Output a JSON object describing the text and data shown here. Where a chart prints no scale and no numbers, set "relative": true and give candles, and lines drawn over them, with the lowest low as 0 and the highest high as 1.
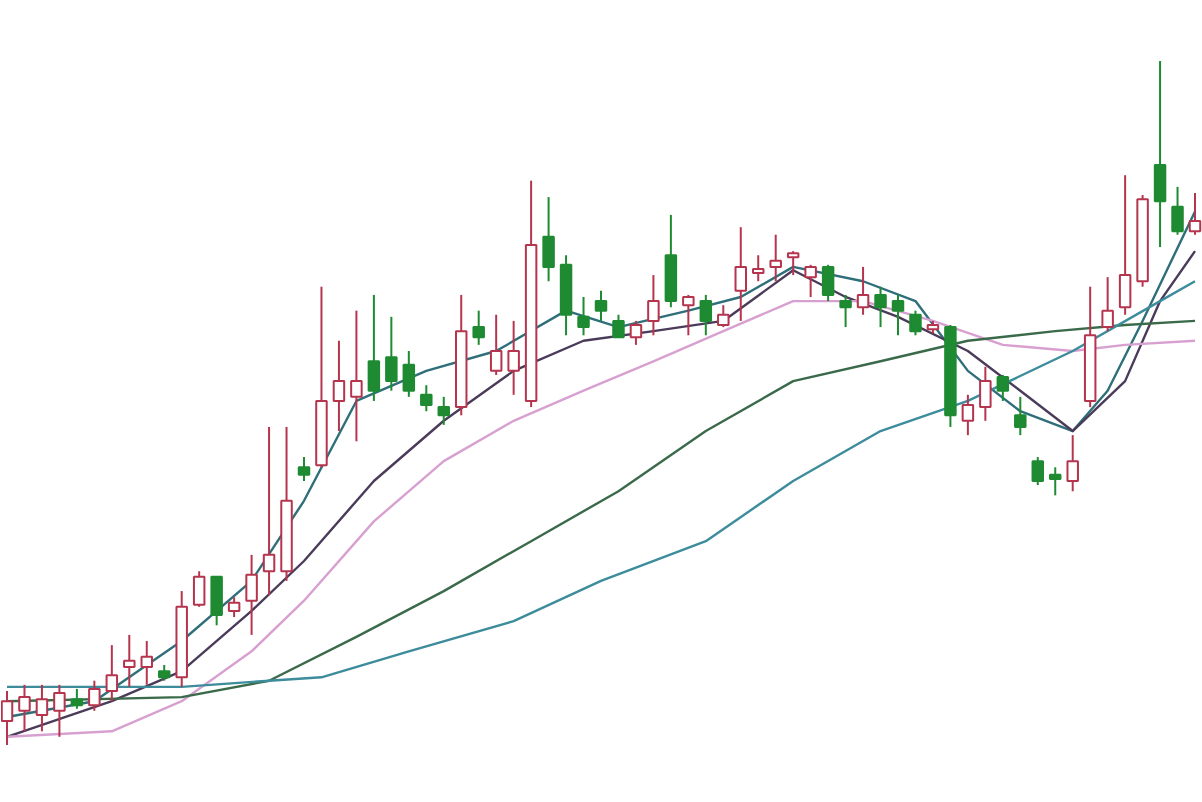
{
  "chart_data": {
    "type": "candlestick",
    "relative": true,
    "categories": [
      null,
      null,
      null,
      null,
      null,
      null,
      null,
      null,
      null,
      null,
      null,
      null,
      null,
      null,
      null,
      null,
      null,
      null,
      null,
      null,
      null,
      null,
      null,
      null,
      null,
      null,
      null,
      null,
      null,
      null,
      null,
      null,
      null,
      null,
      null,
      null,
      null,
      null,
      null,
      null,
      null,
      null,
      null,
      null,
      null,
      null,
      null,
      null,
      null,
      null,
      null,
      null,
      null,
      null,
      null,
      null,
      null,
      null,
      null,
      null,
      null,
      null,
      null,
      null,
      null,
      null,
      null,
      null,
      null
    ],
    "ohlc": [
      [
        0.035,
        0.079,
        0,
        0.064
      ],
      [
        0.05,
        0.088,
        0.02,
        0.07
      ],
      [
        0.044,
        0.088,
        0.02,
        0.067
      ],
      [
        0.05,
        0.088,
        0.012,
        0.076
      ],
      [
        0.067,
        0.082,
        0.053,
        0.058
      ],
      [
        0.058,
        0.094,
        0.05,
        0.082
      ],
      [
        0.079,
        0.146,
        0.064,
        0.102
      ],
      [
        0.114,
        0.161,
        0.085,
        0.123
      ],
      [
        0.114,
        0.152,
        0.088,
        0.129
      ],
      [
        0.108,
        0.117,
        0.094,
        0.099
      ],
      [
        0.099,
        0.225,
        0.085,
        0.202
      ],
      [
        0.205,
        0.254,
        0.202,
        0.246
      ],
      [
        0.246,
        0.246,
        0.175,
        0.19
      ],
      [
        0.196,
        0.216,
        0.187,
        0.208
      ],
      [
        0.211,
        0.278,
        0.161,
        0.249
      ],
      [
        0.254,
        0.465,
        0.219,
        0.278
      ],
      [
        0.254,
        0.465,
        0.24,
        0.357
      ],
      [
        0.406,
        0.421,
        0.386,
        0.395
      ],
      [
        0.409,
        0.67,
        0.406,
        0.503
      ],
      [
        0.503,
        0.591,
        0.459,
        0.532
      ],
      [
        0.509,
        0.635,
        0.444,
        0.532
      ],
      [
        0.561,
        0.658,
        0.503,
        0.518
      ],
      [
        0.567,
        0.626,
        0.518,
        0.532
      ],
      [
        0.556,
        0.576,
        0.509,
        0.518
      ],
      [
        0.512,
        0.526,
        0.488,
        0.497
      ],
      [
        0.494,
        0.509,
        0.468,
        0.482
      ],
      [
        0.494,
        0.658,
        0.482,
        0.605
      ],
      [
        0.611,
        0.635,
        0.585,
        0.596
      ],
      [
        0.547,
        0.629,
        0.541,
        0.576
      ],
      [
        0.547,
        0.62,
        0.512,
        0.576
      ],
      [
        0.503,
        0.825,
        0.494,
        0.731
      ],
      [
        0.743,
        0.801,
        0.678,
        0.699
      ],
      [
        0.702,
        0.716,
        0.599,
        0.629
      ],
      [
        0.626,
        0.655,
        0.599,
        0.611
      ],
      [
        0.649,
        0.664,
        0.62,
        0.635
      ],
      [
        0.62,
        0.629,
        0.596,
        0.596
      ],
      [
        0.596,
        0.62,
        0.585,
        0.614
      ],
      [
        0.62,
        0.687,
        0.599,
        0.649
      ],
      [
        0.716,
        0.775,
        0.64,
        0.649
      ],
      [
        0.643,
        0.658,
        0.599,
        0.655
      ],
      [
        0.649,
        0.658,
        0.599,
        0.62
      ],
      [
        0.614,
        0.643,
        0.611,
        0.629
      ],
      [
        0.664,
        0.757,
        0.62,
        0.699
      ],
      [
        0.69,
        0.716,
        0.678,
        0.696
      ],
      [
        0.699,
        0.746,
        0.678,
        0.708
      ],
      [
        0.713,
        0.722,
        0.687,
        0.719
      ],
      [
        0.684,
        0.702,
        0.655,
        0.699
      ],
      [
        0.699,
        0.702,
        0.649,
        0.658
      ],
      [
        0.649,
        0.658,
        0.611,
        0.64
      ],
      [
        0.64,
        0.699,
        0.629,
        0.658
      ],
      [
        0.658,
        0.67,
        0.611,
        0.64
      ],
      [
        0.649,
        0.658,
        0.599,
        0.635
      ],
      [
        0.629,
        0.635,
        0.599,
        0.605
      ],
      [
        0.608,
        0.62,
        0.602,
        0.614
      ],
      [
        0.611,
        0.614,
        0.465,
        0.482
      ],
      [
        0.474,
        0.512,
        0.453,
        0.497
      ],
      [
        0.494,
        0.553,
        0.474,
        0.532
      ],
      [
        0.538,
        0.541,
        0.503,
        0.518
      ],
      [
        0.482,
        0.509,
        0.453,
        0.465
      ],
      [
        0.415,
        0.421,
        0.38,
        0.386
      ],
      [
        0.395,
        0.406,
        0.365,
        0.389
      ],
      [
        0.386,
        0.453,
        0.371,
        0.415
      ],
      [
        0.503,
        0.67,
        0.494,
        0.599
      ],
      [
        0.611,
        0.684,
        0.605,
        0.635
      ],
      [
        0.64,
        0.833,
        0.629,
        0.687
      ],
      [
        0.678,
        0.804,
        0.67,
        0.798
      ],
      [
        0.848,
        1,
        0.728,
        0.795
      ],
      [
        0.787,
        0.816,
        0.746,
        0.751
      ],
      [
        0.751,
        0.807,
        0.746,
        0.766
      ]
    ],
    "series": [
      {
        "type": "line",
        "color": "#2f6f7a",
        "values": [
          0.041,
          null,
          null,
          null,
          null,
          0.064,
          null,
          null,
          null,
          null,
          0.152,
          null,
          null,
          null,
          0.24,
          null,
          null,
          0.357,
          null,
          null,
          0.503,
          null,
          null,
          null,
          0.547,
          null,
          null,
          null,
          0.576,
          null,
          null,
          null,
          0.635,
          null,
          null,
          0.611,
          null,
          null,
          null,
          0.635,
          null,
          null,
          0.655,
          null,
          null,
          0.699,
          null,
          null,
          null,
          0.678,
          null,
          null,
          0.649,
          null,
          null,
          0.547,
          null,
          null,
          0.488,
          null,
          null,
          0.459,
          null,
          0.518,
          null,
          0.62,
          null,
          null,
          0.78
        ]
      },
      {
        "type": "line",
        "color": "#4b3b5a",
        "values": [
          0.012,
          null,
          null,
          null,
          null,
          null,
          0.064,
          null,
          null,
          null,
          0.108,
          null,
          null,
          null,
          0.196,
          null,
          null,
          0.269,
          null,
          null,
          null,
          0.386,
          null,
          null,
          null,
          0.474,
          null,
          null,
          null,
          0.547,
          null,
          null,
          null,
          0.591,
          null,
          null,
          null,
          0.605,
          null,
          null,
          null,
          0.62,
          null,
          null,
          null,
          0.694,
          null,
          null,
          0.655,
          null,
          null,
          0.626,
          null,
          null,
          null,
          0.576,
          null,
          null,
          0.518,
          null,
          null,
          0.459,
          null,
          null,
          0.532,
          null,
          0.649,
          null,
          0.722
        ]
      },
      {
        "type": "line",
        "color": "#d8a0d0",
        "values": [
          0.012,
          null,
          null,
          null,
          null,
          null,
          0.02,
          null,
          null,
          null,
          0.064,
          null,
          null,
          null,
          0.137,
          null,
          null,
          0.211,
          null,
          null,
          null,
          0.327,
          null,
          null,
          null,
          0.415,
          null,
          null,
          null,
          0.474,
          null,
          null,
          null,
          0.518,
          null,
          null,
          null,
          0.561,
          null,
          null,
          null,
          0.605,
          null,
          null,
          null,
          0.649,
          null,
          null,
          null,
          0.649,
          null,
          null,
          null,
          0.62,
          null,
          null,
          null,
          0.585,
          null,
          null,
          null,
          0.576,
          null,
          null,
          0.585,
          null,
          null,
          null,
          0.591
        ]
      },
      {
        "type": "line",
        "color": "#3a6a4a",
        "values": [
          0.064,
          null,
          null,
          null,
          null,
          null,
          null,
          null,
          null,
          null,
          0.07,
          null,
          null,
          null,
          null,
          0.094,
          null,
          null,
          null,
          null,
          0.158,
          null,
          null,
          null,
          null,
          0.225,
          null,
          null,
          null,
          null,
          0.298,
          null,
          null,
          null,
          null,
          0.371,
          null,
          null,
          null,
          null,
          0.459,
          null,
          null,
          null,
          null,
          0.532,
          null,
          null,
          null,
          null,
          0.561,
          null,
          null,
          null,
          null,
          0.591,
          null,
          null,
          null,
          null,
          0.605,
          null,
          null,
          null,
          0.614,
          null,
          null,
          null,
          0.62
        ]
      },
      {
        "type": "line",
        "color": "#3c8c9c",
        "values": [
          0.085,
          null,
          null,
          null,
          null,
          null,
          null,
          null,
          null,
          null,
          0.085,
          null,
          null,
          null,
          null,
          0.094,
          null,
          null,
          0.099,
          null,
          null,
          null,
          null,
          0.137,
          null,
          null,
          null,
          null,
          null,
          0.181,
          null,
          null,
          null,
          null,
          0.24,
          null,
          null,
          null,
          null,
          null,
          0.298,
          null,
          null,
          null,
          null,
          0.386,
          null,
          null,
          null,
          null,
          0.459,
          null,
          null,
          null,
          null,
          0.503,
          null,
          null,
          null,
          null,
          null,
          0.576,
          null,
          null,
          null,
          null,
          0.649,
          null,
          0.678
        ]
      }
    ]
  }
}
